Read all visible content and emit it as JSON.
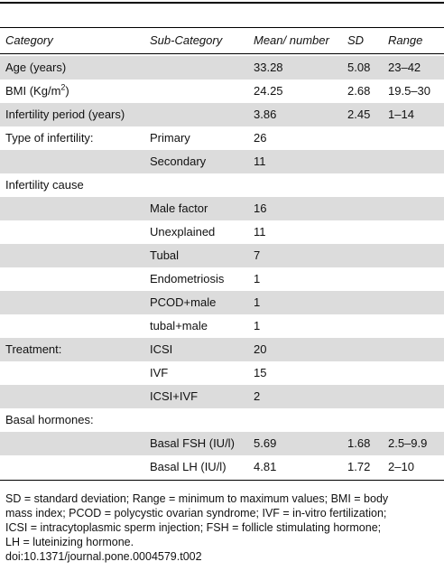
{
  "table": {
    "header": [
      "Category",
      "Sub-Category",
      "Mean/ number",
      "SD",
      "Range"
    ],
    "rows": [
      [
        "Age (years)",
        null,
        "33.28",
        "5.08",
        "23–42"
      ],
      [
        {
          "text": "BMI (Kg/m",
          "sup": "2",
          "after": ")"
        },
        null,
        "24.25",
        "2.68",
        "19.5–30"
      ],
      [
        "Infertility period (years)",
        null,
        "3.86",
        "2.45",
        "1–14"
      ],
      [
        "Type of infertility:",
        "Primary",
        "26",
        null,
        null
      ],
      [
        null,
        "Secondary",
        "11",
        null,
        null
      ],
      [
        "Infertility cause",
        null,
        null,
        null,
        null
      ],
      [
        null,
        "Male factor",
        "16",
        null,
        null
      ],
      [
        null,
        "Unexplained",
        "11",
        null,
        null
      ],
      [
        null,
        "Tubal",
        "7",
        null,
        null
      ],
      [
        null,
        "Endometriosis",
        "1",
        null,
        null
      ],
      [
        null,
        "PCOD+male",
        "1",
        null,
        null
      ],
      [
        null,
        "tubal+male",
        "1",
        null,
        null
      ],
      [
        "Treatment:",
        "ICSI",
        "20",
        null,
        null
      ],
      [
        null,
        "IVF",
        "15",
        null,
        null
      ],
      [
        null,
        "ICSI+IVF",
        "2",
        null,
        null
      ],
      [
        "Basal hormones:",
        null,
        null,
        null,
        null
      ],
      [
        null,
        "Basal FSH (IU/l)",
        "5.69",
        "1.68",
        "2.5–9.9"
      ],
      [
        null,
        "Basal LH (IU/l)",
        "4.81",
        "1.72",
        "2–10"
      ]
    ]
  },
  "footnote": [
    "SD = standard deviation; Range = minimum to maximum values; BMI = body",
    "mass index; PCOD = polycystic ovarian syndrome; IVF = in-vitro fertilization;",
    "ICSI = intracytoplasmic sperm injection; FSH = follicle stimulating hormone;",
    "LH = luteinizing hormone.",
    "doi:10.1371/journal.pone.0004579.t002"
  ]
}
